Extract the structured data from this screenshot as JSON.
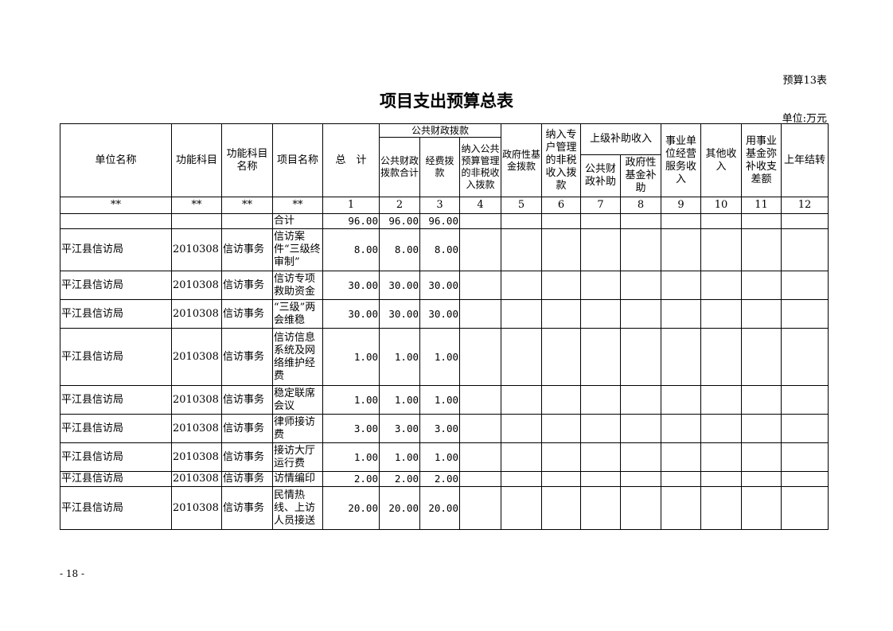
{
  "form_no": "预算13表",
  "title": "项目支出预算总表",
  "unit": "单位:万元",
  "footer": "- 18 -",
  "headers": {
    "unit_name": "单位名称",
    "func_code": "功能科目",
    "func_name": "功能科目名称",
    "project": "项目名称",
    "total": "总　计",
    "public_group": "公共财政拨款",
    "public_total": "公共财政拨款合计",
    "funding": "经费拨款",
    "nontax_public": "纳入公共预算管理的非税收入拨款",
    "gov_fund": "政府性基金拨款",
    "nontax_special": "纳入专户管理的非税收入拨款",
    "superior_group": "上级补助收入",
    "superior_public": "公共财政补助",
    "superior_fund": "政府性基金补助",
    "business": "事业单位经营服务收入",
    "other": "其他收入",
    "fund_gap": "用事业基金弥补收支差额",
    "carryover": "上年结转"
  },
  "index_row": [
    "**",
    "**",
    "**",
    "**",
    "1",
    "2",
    "3",
    "4",
    "5",
    "6",
    "7",
    "8",
    "9",
    "10",
    "11",
    "12"
  ],
  "total_row": {
    "label": "合计",
    "total": "96.00",
    "public_total": "96.00",
    "funding": "96.00"
  },
  "rows": [
    {
      "unit": "平江县信访局",
      "code": "2010308",
      "func": "信访事务",
      "project": "信访案件“三级终审制”",
      "total": "8.00",
      "public_total": "8.00",
      "funding": "8.00"
    },
    {
      "unit": "平江县信访局",
      "code": "2010308",
      "func": "信访事务",
      "project": "信访专项救助资金",
      "total": "30.00",
      "public_total": "30.00",
      "funding": "30.00"
    },
    {
      "unit": "平江县信访局",
      "code": "2010308",
      "func": "信访事务",
      "project": "“三级”两会维稳",
      "total": "30.00",
      "public_total": "30.00",
      "funding": "30.00"
    },
    {
      "unit": "平江县信访局",
      "code": "2010308",
      "func": "信访事务",
      "project": "信访信息系统及网络维护经费",
      "total": "1.00",
      "public_total": "1.00",
      "funding": "1.00"
    },
    {
      "unit": "平江县信访局",
      "code": "2010308",
      "func": "信访事务",
      "project": "稳定联席会议",
      "total": "1.00",
      "public_total": "1.00",
      "funding": "1.00"
    },
    {
      "unit": "平江县信访局",
      "code": "2010308",
      "func": "信访事务",
      "project": "律师接访费",
      "total": "3.00",
      "public_total": "3.00",
      "funding": "3.00"
    },
    {
      "unit": "平江县信访局",
      "code": "2010308",
      "func": "信访事务",
      "project": "接访大厅运行费",
      "total": "1.00",
      "public_total": "1.00",
      "funding": "1.00"
    },
    {
      "unit": "平江县信访局",
      "code": "2010308",
      "func": "信访事务",
      "project": "访情编印",
      "total": "2.00",
      "public_total": "2.00",
      "funding": "2.00"
    },
    {
      "unit": "平江县信访局",
      "code": "2010308",
      "func": "信访事务",
      "project": "民情热线、上访人员接送",
      "total": "20.00",
      "public_total": "20.00",
      "funding": "20.00"
    }
  ]
}
